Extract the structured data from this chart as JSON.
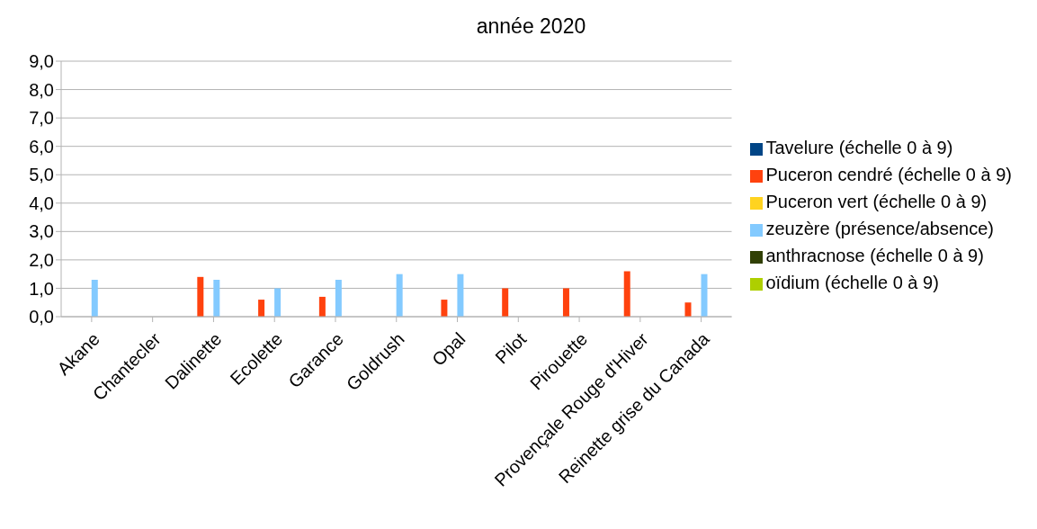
{
  "chart_data": {
    "type": "bar",
    "title": "année 2020",
    "categories": [
      "Akane",
      "Chantecler",
      "Dalinette",
      "Ecolette",
      "Garance",
      "Goldrush",
      "Opal",
      "Pilot",
      "Pirouette",
      "Provençale Rouge d'Hiver",
      "Reinette grise du Canada"
    ],
    "series": [
      {
        "name": "Tavelure (échelle 0 à 9)",
        "color": "#004586",
        "values": [
          null,
          null,
          null,
          null,
          null,
          null,
          null,
          null,
          null,
          null,
          null
        ]
      },
      {
        "name": "Puceron cendré (échelle 0 à 9)",
        "color": "#ff420e",
        "values": [
          null,
          null,
          1.4,
          0.6,
          0.7,
          null,
          0.6,
          1.0,
          1.0,
          1.6,
          0.5
        ]
      },
      {
        "name": "Puceron vert (échelle 0 à 9)",
        "color": "#ffd320",
        "values": [
          null,
          null,
          null,
          null,
          null,
          null,
          null,
          null,
          null,
          null,
          null
        ]
      },
      {
        "name": "zeuzère (présence/absence)",
        "color": "#83caff",
        "values": [
          1.3,
          null,
          1.3,
          1.0,
          1.3,
          1.5,
          1.5,
          null,
          null,
          null,
          1.5
        ]
      },
      {
        "name": "anthracnose (échelle 0 à 9)",
        "color": "#314004",
        "values": [
          null,
          null,
          null,
          null,
          null,
          null,
          null,
          null,
          null,
          null,
          null
        ]
      },
      {
        "name": "oïdium (échelle 0 à 9)",
        "color": "#aecf00",
        "values": [
          null,
          null,
          null,
          null,
          null,
          null,
          null,
          null,
          null,
          null,
          null
        ]
      }
    ],
    "ylim": [
      0,
      9
    ],
    "yticks": [
      {
        "value": 0,
        "label": "0,0"
      },
      {
        "value": 1,
        "label": "1,0"
      },
      {
        "value": 2,
        "label": "2,0"
      },
      {
        "value": 3,
        "label": "3,0"
      },
      {
        "value": 4,
        "label": "4,0"
      },
      {
        "value": 5,
        "label": "5,0"
      },
      {
        "value": 6,
        "label": "6,0"
      },
      {
        "value": 7,
        "label": "7,0"
      },
      {
        "value": 8,
        "label": "8,0"
      },
      {
        "value": 9,
        "label": "9,0"
      }
    ],
    "grid": "y",
    "legend": "right"
  }
}
